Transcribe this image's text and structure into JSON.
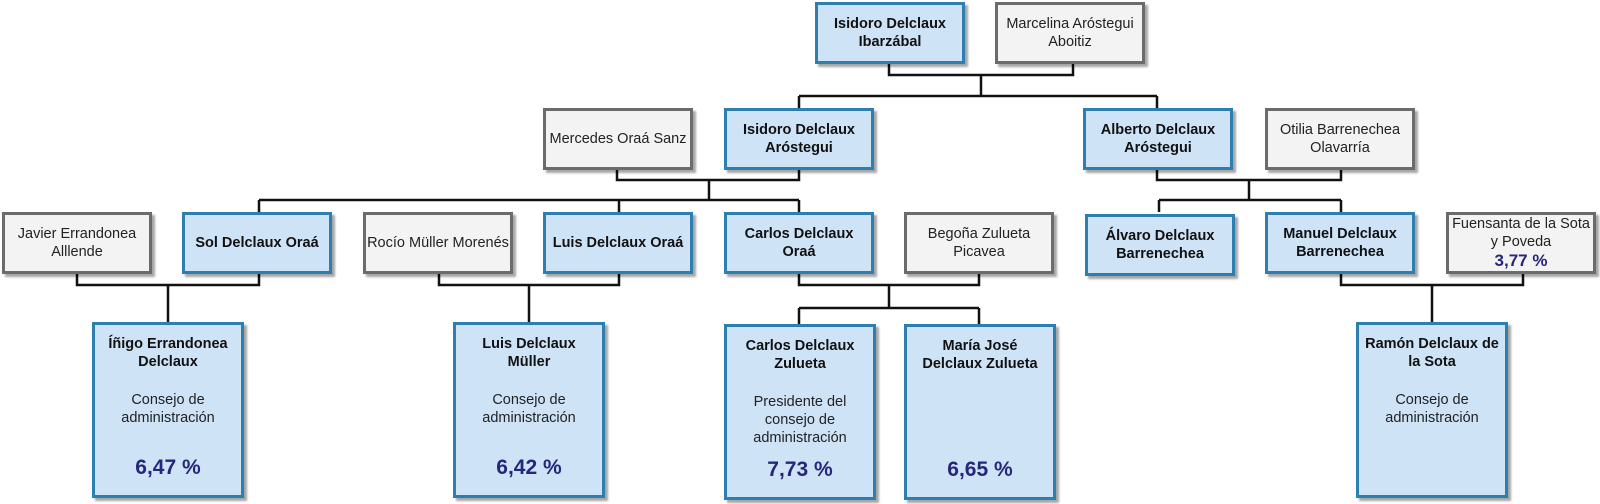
{
  "nodes": {
    "n1": {
      "name": "Isidoro Delclaux Ibarzábal"
    },
    "n2": {
      "name": "Marcelina Aróstegui Aboitiz"
    },
    "n3": {
      "name": "Mercedes Oraá Sanz"
    },
    "n4": {
      "name": "Isidoro Delclaux Aróstegui"
    },
    "n5": {
      "name": "Alberto Delclaux Aróstegui"
    },
    "n6": {
      "name": "Otilia Barrenechea Olavarría"
    },
    "n7": {
      "name": "Javier Errandonea Alllende"
    },
    "n8": {
      "name": "Sol Delclaux Oraá"
    },
    "n9": {
      "name": "Rocío Müller Morenés"
    },
    "n10": {
      "name": "Luis Delclaux Oraá"
    },
    "n11": {
      "name": "Carlos Delclaux Oraá"
    },
    "n12": {
      "name": "Begoña Zulueta Picavea"
    },
    "n13": {
      "name": "Álvaro Delclaux Barrenechea"
    },
    "n14": {
      "name": "Manuel Delclaux Barrenechea"
    },
    "n15": {
      "name": "Fuensanta de la Sota y Poveda",
      "pct": "3,77 %"
    },
    "n16": {
      "name": "Íñigo Errandonea Delclaux",
      "role": "Consejo de administración",
      "pct": "6,47 %"
    },
    "n17": {
      "name": "Luis Delclaux Müller",
      "role": "Consejo de administración",
      "pct": "6,42 %"
    },
    "n18": {
      "name": "Carlos Delclaux Zulueta",
      "role": "Presidente del consejo de administración",
      "pct": "7,73 %"
    },
    "n19": {
      "name": "María José Delclaux Zulueta",
      "pct": "6,65 %"
    },
    "n20": {
      "name": "Ramón Delclaux de la Sota",
      "role": "Consejo de administración",
      "pct": ""
    }
  }
}
